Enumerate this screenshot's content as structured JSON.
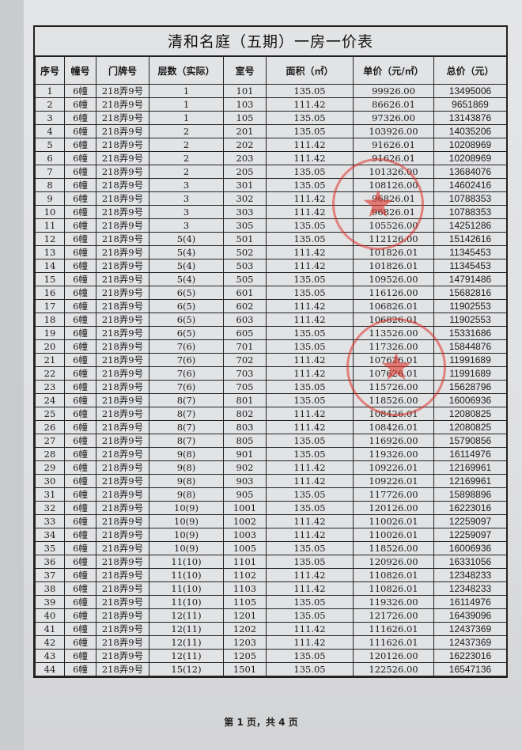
{
  "title": "清和名庭（五期）一房一价表",
  "headers": [
    "序号",
    "幢号",
    "门牌号",
    "层数（实际）",
    "室号",
    "面积（㎡）",
    "单价（元/㎡）",
    "总价（元）"
  ],
  "rows": [
    [
      "1",
      "6幢",
      "218弄9号",
      "1",
      "101",
      "135.05",
      "99926.00",
      "13495006"
    ],
    [
      "2",
      "6幢",
      "218弄9号",
      "1",
      "103",
      "111.42",
      "86626.01",
      "9651869"
    ],
    [
      "3",
      "6幢",
      "218弄9号",
      "1",
      "105",
      "135.05",
      "97326.00",
      "13143876"
    ],
    [
      "4",
      "6幢",
      "218弄9号",
      "2",
      "201",
      "135.05",
      "103926.00",
      "14035206"
    ],
    [
      "5",
      "6幢",
      "218弄9号",
      "2",
      "202",
      "111.42",
      "91626.01",
      "10208969"
    ],
    [
      "6",
      "6幢",
      "218弄9号",
      "2",
      "203",
      "111.42",
      "91626.01",
      "10208969"
    ],
    [
      "7",
      "6幢",
      "218弄9号",
      "2",
      "205",
      "135.05",
      "101326.00",
      "13684076"
    ],
    [
      "8",
      "6幢",
      "218弄9号",
      "3",
      "301",
      "135.05",
      "108126.00",
      "14602416"
    ],
    [
      "9",
      "6幢",
      "218弄9号",
      "3",
      "302",
      "111.42",
      "96826.01",
      "10788353"
    ],
    [
      "10",
      "6幢",
      "218弄9号",
      "3",
      "303",
      "111.42",
      "96826.01",
      "10788353"
    ],
    [
      "11",
      "6幢",
      "218弄9号",
      "3",
      "305",
      "135.05",
      "105526.00",
      "14251286"
    ],
    [
      "12",
      "6幢",
      "218弄9号",
      "5(4)",
      "501",
      "135.05",
      "112126.00",
      "15142616"
    ],
    [
      "13",
      "6幢",
      "218弄9号",
      "5(4)",
      "502",
      "111.42",
      "101826.01",
      "11345453"
    ],
    [
      "14",
      "6幢",
      "218弄9号",
      "5(4)",
      "503",
      "111.42",
      "101826.01",
      "11345453"
    ],
    [
      "15",
      "6幢",
      "218弄9号",
      "5(4)",
      "505",
      "135.05",
      "109526.00",
      "14791486"
    ],
    [
      "16",
      "6幢",
      "218弄9号",
      "6(5)",
      "601",
      "135.05",
      "116126.00",
      "15682816"
    ],
    [
      "17",
      "6幢",
      "218弄9号",
      "6(5)",
      "602",
      "111.42",
      "106826.01",
      "11902553"
    ],
    [
      "18",
      "6幢",
      "218弄9号",
      "6(5)",
      "603",
      "111.42",
      "106826.01",
      "11902553"
    ],
    [
      "19",
      "6幢",
      "218弄9号",
      "6(5)",
      "605",
      "135.05",
      "113526.00",
      "15331686"
    ],
    [
      "20",
      "6幢",
      "218弄9号",
      "7(6)",
      "701",
      "135.05",
      "117326.00",
      "15844876"
    ],
    [
      "21",
      "6幢",
      "218弄9号",
      "7(6)",
      "702",
      "111.42",
      "107626.01",
      "11991689"
    ],
    [
      "22",
      "6幢",
      "218弄9号",
      "7(6)",
      "703",
      "111.42",
      "107626.01",
      "11991689"
    ],
    [
      "23",
      "6幢",
      "218弄9号",
      "7(6)",
      "705",
      "135.05",
      "115726.00",
      "15628796"
    ],
    [
      "24",
      "6幢",
      "218弄9号",
      "8(7)",
      "801",
      "135.05",
      "118526.00",
      "16006936"
    ],
    [
      "25",
      "6幢",
      "218弄9号",
      "8(7)",
      "802",
      "111.42",
      "108426.01",
      "12080825"
    ],
    [
      "26",
      "6幢",
      "218弄9号",
      "8(7)",
      "803",
      "111.42",
      "108426.01",
      "12080825"
    ],
    [
      "27",
      "6幢",
      "218弄9号",
      "8(7)",
      "805",
      "135.05",
      "116926.00",
      "15790856"
    ],
    [
      "28",
      "6幢",
      "218弄9号",
      "9(8)",
      "901",
      "135.05",
      "119326.00",
      "16114976"
    ],
    [
      "29",
      "6幢",
      "218弄9号",
      "9(8)",
      "902",
      "111.42",
      "109226.01",
      "12169961"
    ],
    [
      "30",
      "6幢",
      "218弄9号",
      "9(8)",
      "903",
      "111.42",
      "109226.01",
      "12169961"
    ],
    [
      "31",
      "6幢",
      "218弄9号",
      "9(8)",
      "905",
      "135.05",
      "117726.00",
      "15898896"
    ],
    [
      "32",
      "6幢",
      "218弄9号",
      "10(9)",
      "1001",
      "135.05",
      "120126.00",
      "16223016"
    ],
    [
      "33",
      "6幢",
      "218弄9号",
      "10(9)",
      "1002",
      "111.42",
      "110026.01",
      "12259097"
    ],
    [
      "34",
      "6幢",
      "218弄9号",
      "10(9)",
      "1003",
      "111.42",
      "110026.01",
      "12259097"
    ],
    [
      "35",
      "6幢",
      "218弄9号",
      "10(9)",
      "1005",
      "135.05",
      "118526.00",
      "16006936"
    ],
    [
      "36",
      "6幢",
      "218弄9号",
      "11(10)",
      "1101",
      "135.05",
      "120926.00",
      "16331056"
    ],
    [
      "37",
      "6幢",
      "218弄9号",
      "11(10)",
      "1102",
      "111.42",
      "110826.01",
      "12348233"
    ],
    [
      "38",
      "6幢",
      "218弄9号",
      "11(10)",
      "1103",
      "111.42",
      "110826.01",
      "12348233"
    ],
    [
      "39",
      "6幢",
      "218弄9号",
      "11(10)",
      "1105",
      "135.05",
      "119326.00",
      "16114976"
    ],
    [
      "40",
      "6幢",
      "218弄9号",
      "12(11)",
      "1201",
      "135.05",
      "121726.00",
      "16439096"
    ],
    [
      "41",
      "6幢",
      "218弄9号",
      "12(11)",
      "1202",
      "111.42",
      "111626.01",
      "12437369"
    ],
    [
      "42",
      "6幢",
      "218弄9号",
      "12(11)",
      "1203",
      "111.42",
      "111626.01",
      "12437369"
    ],
    [
      "43",
      "6幢",
      "218弄9号",
      "12(11)",
      "1205",
      "135.05",
      "120126.00",
      "16223016"
    ],
    [
      "44",
      "6幢",
      "218弄9号",
      "15(12)",
      "1501",
      "135.05",
      "122526.00",
      "16547136"
    ]
  ],
  "footer": "第 1 页，共 4 页",
  "stamp_color": "#dc3228"
}
